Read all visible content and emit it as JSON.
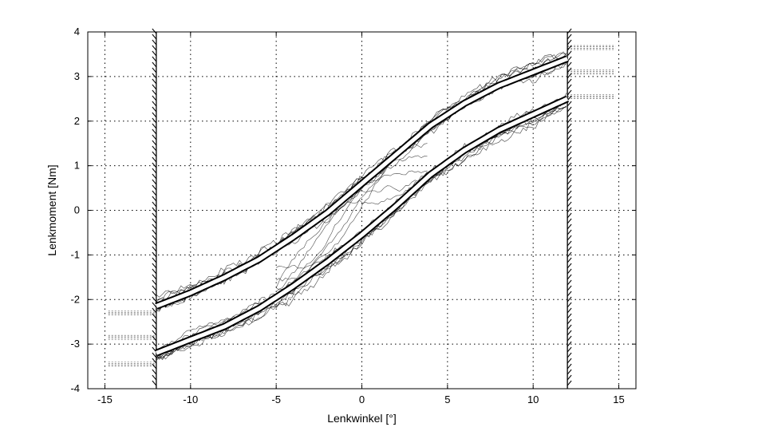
{
  "chart_data": {
    "type": "line",
    "title": "",
    "xlabel": "Lenkwinkel [°]",
    "ylabel": "Lenkmoment [Nm]",
    "xlim": [
      -16,
      16
    ],
    "ylim": [
      -4,
      4
    ],
    "xticks": [
      -15,
      -10,
      -5,
      0,
      5,
      10,
      15
    ],
    "yticks": [
      -4,
      -3,
      -2,
      -1,
      0,
      1,
      2,
      3,
      4
    ],
    "xtick_labels": [
      "-15",
      "-10",
      "-5",
      "0",
      "5",
      "10",
      "15"
    ],
    "ytick_labels": [
      "-4",
      "-3",
      "-2",
      "-1",
      "0",
      "1",
      "2",
      "3",
      "4"
    ],
    "grid": true,
    "end_stops": [
      -12,
      12
    ],
    "series": [
      {
        "x": [
          -12,
          -10,
          -8,
          -6,
          -4,
          -2,
          0,
          2,
          4,
          6,
          8,
          10,
          12
        ],
        "y": [
          -2.15,
          -1.85,
          -1.5,
          -1.1,
          -0.6,
          -0.05,
          0.6,
          1.25,
          1.9,
          2.4,
          2.8,
          3.1,
          3.4
        ]
      },
      {
        "x": [
          -12,
          -10,
          -8,
          -6,
          -4,
          -2,
          0,
          2,
          4,
          6,
          8,
          10,
          12
        ],
        "y": [
          -3.2,
          -2.9,
          -2.6,
          -2.2,
          -1.7,
          -1.15,
          -0.55,
          0.1,
          0.8,
          1.35,
          1.8,
          2.15,
          2.5
        ]
      }
    ]
  }
}
